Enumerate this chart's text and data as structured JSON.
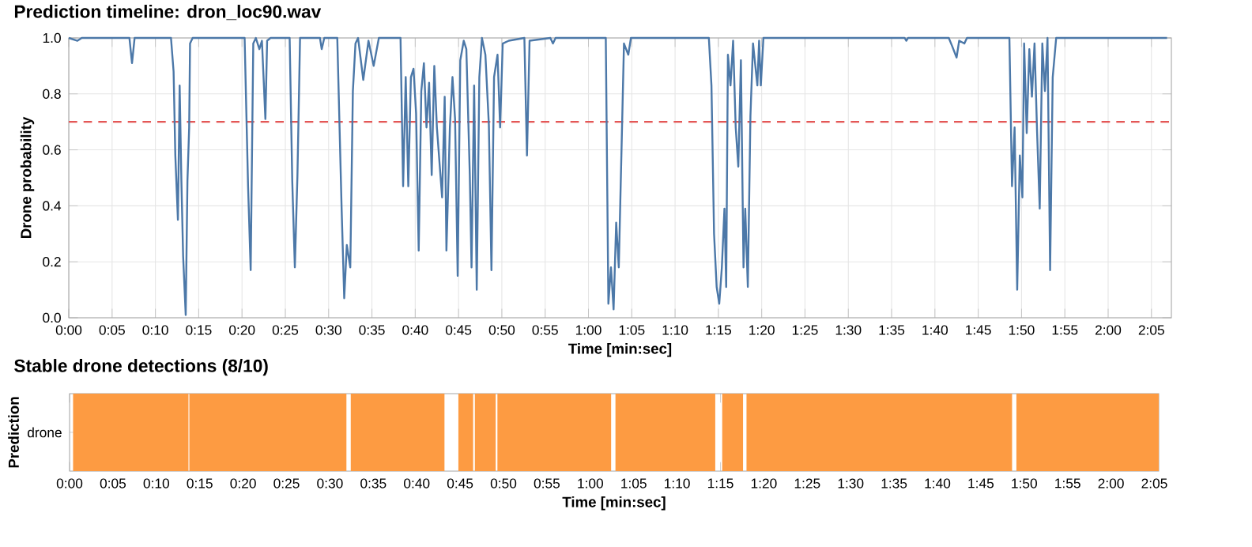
{
  "chart_data": [
    {
      "type": "line",
      "title": "Prediction timeline: dron_loc90.wav",
      "xlabel": "Time [min:sec]",
      "ylabel": "Drone probability",
      "grid": true,
      "marker": "none",
      "line_style": "solid",
      "xlim": [
        0,
        127.3
      ],
      "ylim": [
        0,
        1
      ],
      "xticks": [
        {
          "value": 0,
          "label": "0:00"
        },
        {
          "value": 5,
          "label": "0:05"
        },
        {
          "value": 10,
          "label": "0:10"
        },
        {
          "value": 15,
          "label": "0:15"
        },
        {
          "value": 20,
          "label": "0:20"
        },
        {
          "value": 25,
          "label": "0:25"
        },
        {
          "value": 30,
          "label": "0:30"
        },
        {
          "value": 35,
          "label": "0:35"
        },
        {
          "value": 40,
          "label": "0:40"
        },
        {
          "value": 45,
          "label": "0:45"
        },
        {
          "value": 50,
          "label": "0:50"
        },
        {
          "value": 55,
          "label": "0:55"
        },
        {
          "value": 60,
          "label": "1:00"
        },
        {
          "value": 65,
          "label": "1:05"
        },
        {
          "value": 70,
          "label": "1:10"
        },
        {
          "value": 75,
          "label": "1:15"
        },
        {
          "value": 80,
          "label": "1:20"
        },
        {
          "value": 85,
          "label": "1:25"
        },
        {
          "value": 90,
          "label": "1:30"
        },
        {
          "value": 95,
          "label": "1:35"
        },
        {
          "value": 100,
          "label": "1:40"
        },
        {
          "value": 105,
          "label": "1:45"
        },
        {
          "value": 110,
          "label": "1:50"
        },
        {
          "value": 115,
          "label": "1:55"
        },
        {
          "value": 120,
          "label": "2:00"
        },
        {
          "value": 125,
          "label": "2:05"
        }
      ],
      "yticks": [
        {
          "value": 0,
          "label": "0.0"
        },
        {
          "value": 0.2,
          "label": "0.2"
        },
        {
          "value": 0.4,
          "label": "0.4"
        },
        {
          "value": 0.6,
          "label": "0.6"
        },
        {
          "value": 0.8,
          "label": "0.8"
        },
        {
          "value": 1,
          "label": "1.0"
        }
      ],
      "ref_lines": [
        {
          "axis": "y",
          "value": 0.7,
          "color": "#e45756",
          "line_style": "dashed"
        }
      ],
      "series": [
        {
          "color": "#4c78a8",
          "x": [
            0,
            1.0,
            1.5,
            7.0,
            7.3,
            7.6,
            11.8,
            12.1,
            12.3,
            12.6,
            12.8,
            13.0,
            13.2,
            13.5,
            13.7,
            13.9,
            14.0,
            14.3,
            20.3,
            20.7,
            21.0,
            21.3,
            21.6,
            22.0,
            22.3,
            22.7,
            22.9,
            23.3,
            25.5,
            25.8,
            26.1,
            26.4,
            26.7,
            29.0,
            29.2,
            29.5,
            31.0,
            31.5,
            31.8,
            32.1,
            32.5,
            32.8,
            33.1,
            33.4,
            34.0,
            34.6,
            35.2,
            35.8,
            38.3,
            38.6,
            38.9,
            39.2,
            39.5,
            39.8,
            40.1,
            40.4,
            40.7,
            41.0,
            41.3,
            41.6,
            41.9,
            42.2,
            42.5,
            43.1,
            43.4,
            43.6,
            44.0,
            44.3,
            44.6,
            44.9,
            45.2,
            45.6,
            45.9,
            46.3,
            46.5,
            46.8,
            47.1,
            47.4,
            47.7,
            48.1,
            48.5,
            48.8,
            49.1,
            49.5,
            49.8,
            50.1,
            50.8,
            52.6,
            52.9,
            53.2,
            55.6,
            55.9,
            56.2,
            62.0,
            62.3,
            62.6,
            62.9,
            63.2,
            63.5,
            63.8,
            64.1,
            64.6,
            64.9,
            73.9,
            74.2,
            74.5,
            74.8,
            75.1,
            75.4,
            75.7,
            75.9,
            76.1,
            76.4,
            76.7,
            77.0,
            77.3,
            77.6,
            77.9,
            78.1,
            78.4,
            78.7,
            79.0,
            79.5,
            79.7,
            79.9,
            80.2,
            96.5,
            96.7,
            96.9,
            101.6,
            102.0,
            102.5,
            102.8,
            103.4,
            103.7,
            108.6,
            108.9,
            109.2,
            109.5,
            109.8,
            110.1,
            110.3,
            110.6,
            110.9,
            111.2,
            111.5,
            111.8,
            112.1,
            112.4,
            112.7,
            113.0,
            113.3,
            113.6,
            114.0,
            126.8
          ],
          "values": [
            1.0,
            0.99,
            1.0,
            1.0,
            0.91,
            1.0,
            1.0,
            0.88,
            0.58,
            0.35,
            0.83,
            0.49,
            0.22,
            0.01,
            0.49,
            0.68,
            0.98,
            1.0,
            1.0,
            0.47,
            0.17,
            0.98,
            1.0,
            0.96,
            0.99,
            0.71,
            0.99,
            1.0,
            1.0,
            0.49,
            0.18,
            0.51,
            1.0,
            1.0,
            0.96,
            1.0,
            1.0,
            0.39,
            0.07,
            0.26,
            0.18,
            0.81,
            0.98,
            1.0,
            0.85,
            0.99,
            0.9,
            1.0,
            1.0,
            0.47,
            0.86,
            0.47,
            0.86,
            0.89,
            0.73,
            0.24,
            0.81,
            0.91,
            0.68,
            0.84,
            0.51,
            0.9,
            0.68,
            0.43,
            0.79,
            0.24,
            0.68,
            0.86,
            0.71,
            0.15,
            0.92,
            0.99,
            0.96,
            0.51,
            0.18,
            0.83,
            0.1,
            0.86,
            1.0,
            0.94,
            0.69,
            0.17,
            0.86,
            0.94,
            0.68,
            0.98,
            0.99,
            1.0,
            0.58,
            0.99,
            1.0,
            0.98,
            1.0,
            1.0,
            0.05,
            0.18,
            0.03,
            0.34,
            0.18,
            0.58,
            0.98,
            0.94,
            1.0,
            1.0,
            0.83,
            0.3,
            0.11,
            0.05,
            0.18,
            0.39,
            0.11,
            0.94,
            0.83,
            0.99,
            0.68,
            0.54,
            0.92,
            0.18,
            0.39,
            0.11,
            0.72,
            0.98,
            0.83,
            0.99,
            0.83,
            1.0,
            1.0,
            0.99,
            1.0,
            1.0,
            0.97,
            0.93,
            0.99,
            0.98,
            1.0,
            1.0,
            0.47,
            0.68,
            0.1,
            0.58,
            0.43,
            0.98,
            0.66,
            0.96,
            0.79,
            0.98,
            0.66,
            0.39,
            0.98,
            0.81,
            1.0,
            0.17,
            0.86,
            1.0,
            1.0
          ]
        }
      ]
    },
    {
      "type": "bar",
      "orientation": "horizontal",
      "title": "Stable drone detections (8/10)",
      "xlabel": "Time [min:sec]",
      "ylabel": "Prediction",
      "categories": [
        "drone"
      ],
      "xlim": [
        0,
        125.5
      ],
      "xticks": [
        {
          "value": 0,
          "label": "0:00"
        },
        {
          "value": 5,
          "label": "0:05"
        },
        {
          "value": 10,
          "label": "0:10"
        },
        {
          "value": 15,
          "label": "0:15"
        },
        {
          "value": 20,
          "label": "0:20"
        },
        {
          "value": 25,
          "label": "0:25"
        },
        {
          "value": 30,
          "label": "0:30"
        },
        {
          "value": 35,
          "label": "0:35"
        },
        {
          "value": 40,
          "label": "0:40"
        },
        {
          "value": 45,
          "label": "0:45"
        },
        {
          "value": 50,
          "label": "0:50"
        },
        {
          "value": 55,
          "label": "0:55"
        },
        {
          "value": 60,
          "label": "1:00"
        },
        {
          "value": 65,
          "label": "1:05"
        },
        {
          "value": 70,
          "label": "1:10"
        },
        {
          "value": 75,
          "label": "1:15"
        },
        {
          "value": 80,
          "label": "1:20"
        },
        {
          "value": 85,
          "label": "1:25"
        },
        {
          "value": 90,
          "label": "1:30"
        },
        {
          "value": 95,
          "label": "1:35"
        },
        {
          "value": 100,
          "label": "1:40"
        },
        {
          "value": 105,
          "label": "1:45"
        },
        {
          "value": 110,
          "label": "1:50"
        },
        {
          "value": 115,
          "label": "1:55"
        },
        {
          "value": 120,
          "label": "2:00"
        },
        {
          "value": 125,
          "label": "2:05"
        }
      ],
      "series": [
        {
          "color": "#fd9b42",
          "base": [
            0.4
          ],
          "values": [
            13.3
          ]
        },
        {
          "color": "#fd9b42",
          "base": [
            13.8
          ],
          "values": [
            18.1
          ]
        },
        {
          "color": "#fd9b42",
          "base": [
            32.4
          ],
          "values": [
            10.8
          ]
        },
        {
          "color": "#fd9b42",
          "base": [
            44.8
          ],
          "values": [
            1.7
          ]
        },
        {
          "color": "#fd9b42",
          "base": [
            46.7
          ],
          "values": [
            2.4
          ]
        },
        {
          "color": "#fd9b42",
          "base": [
            49.3
          ],
          "values": [
            13.1
          ]
        },
        {
          "color": "#fd9b42",
          "base": [
            62.9
          ],
          "values": [
            11.5
          ]
        },
        {
          "color": "#fd9b42",
          "base": [
            75.2
          ],
          "values": [
            2.4
          ]
        },
        {
          "color": "#fd9b42",
          "base": [
            78.0
          ],
          "values": [
            30.6
          ]
        },
        {
          "color": "#fd9b42",
          "base": [
            109.1
          ],
          "values": [
            16.4
          ]
        }
      ]
    }
  ]
}
